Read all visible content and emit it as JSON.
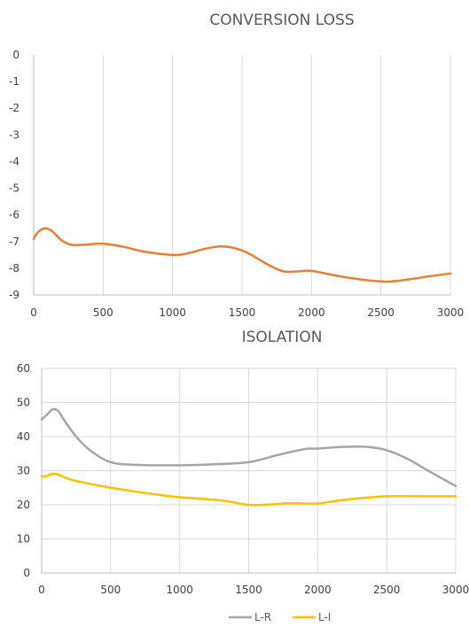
{
  "chart_data": [
    {
      "type": "line",
      "title": "CONVERSION LOSS",
      "xlabel": "",
      "ylabel": "",
      "xlim": [
        0,
        3000
      ],
      "ylim": [
        -9,
        0
      ],
      "x_ticks": [
        0,
        500,
        1000,
        1500,
        2000,
        2500,
        3000
      ],
      "y_ticks": [
        0,
        -1,
        -2,
        -3,
        -4,
        -5,
        -6,
        -7,
        -8,
        -9
      ],
      "grid": "vertical",
      "legend": "none",
      "series": [
        {
          "color": "#ED7D31",
          "points": [
            [
              0,
              -6.9
            ],
            [
              30,
              -6.65
            ],
            [
              80,
              -6.5
            ],
            [
              130,
              -6.6
            ],
            [
              200,
              -6.95
            ],
            [
              270,
              -7.12
            ],
            [
              350,
              -7.12
            ],
            [
              500,
              -7.08
            ],
            [
              650,
              -7.2
            ],
            [
              800,
              -7.38
            ],
            [
              1000,
              -7.5
            ],
            [
              1100,
              -7.45
            ],
            [
              1250,
              -7.25
            ],
            [
              1350,
              -7.18
            ],
            [
              1450,
              -7.25
            ],
            [
              1550,
              -7.45
            ],
            [
              1700,
              -7.9
            ],
            [
              1800,
              -8.12
            ],
            [
              1900,
              -8.12
            ],
            [
              2000,
              -8.1
            ],
            [
              2200,
              -8.3
            ],
            [
              2400,
              -8.45
            ],
            [
              2550,
              -8.5
            ],
            [
              2700,
              -8.42
            ],
            [
              2850,
              -8.3
            ],
            [
              3000,
              -8.2
            ]
          ]
        }
      ]
    },
    {
      "type": "line",
      "title": "ISOLATION",
      "xlabel": "",
      "ylabel": "",
      "xlim": [
        0,
        3000
      ],
      "ylim": [
        0,
        60
      ],
      "x_ticks": [
        0,
        500,
        1000,
        1500,
        2000,
        2500,
        3000
      ],
      "y_ticks": [
        0,
        10,
        20,
        30,
        40,
        50,
        60
      ],
      "grid": "both",
      "legend": "bottom",
      "series": [
        {
          "name": "L-R",
          "color": "#A5A5A5",
          "points": [
            [
              0,
              45
            ],
            [
              40,
              46.5
            ],
            [
              80,
              48
            ],
            [
              120,
              47.5
            ],
            [
              160,
              45
            ],
            [
              250,
              40
            ],
            [
              350,
              36
            ],
            [
              500,
              32.5
            ],
            [
              700,
              31.7
            ],
            [
              1000,
              31.6
            ],
            [
              1200,
              31.8
            ],
            [
              1500,
              32.5
            ],
            [
              1700,
              34.5
            ],
            [
              1900,
              36.3
            ],
            [
              2000,
              36.5
            ],
            [
              2200,
              37
            ],
            [
              2350,
              37
            ],
            [
              2500,
              36
            ],
            [
              2650,
              33.5
            ],
            [
              2800,
              30
            ],
            [
              3000,
              25.5
            ]
          ]
        },
        {
          "name": "L-I",
          "color": "#FFC000",
          "points": [
            [
              0,
              28.5
            ],
            [
              30,
              28.3
            ],
            [
              70,
              29
            ],
            [
              110,
              29
            ],
            [
              170,
              28
            ],
            [
              250,
              27
            ],
            [
              500,
              25
            ],
            [
              800,
              23.2
            ],
            [
              1000,
              22.2
            ],
            [
              1300,
              21.3
            ],
            [
              1500,
              20
            ],
            [
              1700,
              20.2
            ],
            [
              1800,
              20.5
            ],
            [
              2000,
              20.4
            ],
            [
              2200,
              21.5
            ],
            [
              2500,
              22.5
            ],
            [
              2750,
              22.5
            ],
            [
              3000,
              22.5
            ]
          ]
        }
      ]
    }
  ]
}
